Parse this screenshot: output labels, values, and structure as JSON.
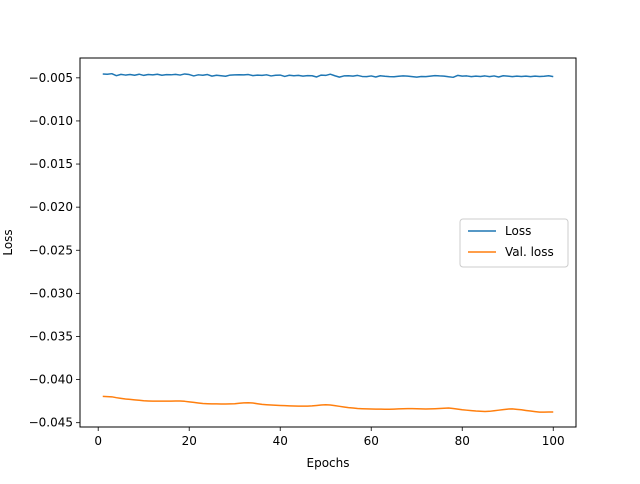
{
  "chart_data": {
    "type": "line",
    "title": "",
    "xlabel": "Epochs",
    "ylabel": "Loss",
    "xlim": [
      -4,
      105
    ],
    "ylim": [
      -0.0455,
      -0.0027
    ],
    "xticks": [
      0,
      20,
      40,
      60,
      80,
      100
    ],
    "xtick_labels": [
      "0",
      "20",
      "40",
      "60",
      "80",
      "100"
    ],
    "yticks": [
      -0.045,
      -0.04,
      -0.035,
      -0.03,
      -0.025,
      -0.02,
      -0.015,
      -0.01,
      -0.005
    ],
    "ytick_labels": [
      "−0.045",
      "−0.040",
      "−0.035",
      "−0.030",
      "−0.025",
      "−0.020",
      "−0.015",
      "−0.010",
      "−0.005"
    ],
    "grid": false,
    "legend_position": "center-right",
    "x": [
      1,
      2,
      3,
      4,
      5,
      6,
      7,
      8,
      9,
      10,
      11,
      12,
      13,
      14,
      15,
      16,
      17,
      18,
      19,
      20,
      21,
      22,
      23,
      24,
      25,
      26,
      27,
      28,
      29,
      30,
      31,
      32,
      33,
      34,
      35,
      36,
      37,
      38,
      39,
      40,
      41,
      42,
      43,
      44,
      45,
      46,
      47,
      48,
      49,
      50,
      51,
      52,
      53,
      54,
      55,
      56,
      57,
      58,
      59,
      60,
      61,
      62,
      63,
      64,
      65,
      66,
      67,
      68,
      69,
      70,
      71,
      72,
      73,
      74,
      75,
      76,
      77,
      78,
      79,
      80,
      81,
      82,
      83,
      84,
      85,
      86,
      87,
      88,
      89,
      90,
      91,
      92,
      93,
      94,
      95,
      96,
      97,
      98,
      99,
      100
    ],
    "series": [
      {
        "name": "Loss",
        "color": "#1f77b4",
        "values": [
          -0.00455,
          -0.00458,
          -0.00452,
          -0.00475,
          -0.0046,
          -0.00468,
          -0.00462,
          -0.0047,
          -0.00458,
          -0.00472,
          -0.00461,
          -0.00466,
          -0.00458,
          -0.0047,
          -0.00463,
          -0.00465,
          -0.0046,
          -0.00468,
          -0.00455,
          -0.00462,
          -0.00478,
          -0.00465,
          -0.0047,
          -0.00462,
          -0.0048,
          -0.0047,
          -0.00476,
          -0.00482,
          -0.00468,
          -0.00466,
          -0.00464,
          -0.00466,
          -0.00462,
          -0.00474,
          -0.00468,
          -0.00472,
          -0.00465,
          -0.00478,
          -0.0047,
          -0.00468,
          -0.00484,
          -0.0047,
          -0.00476,
          -0.00472,
          -0.0048,
          -0.00474,
          -0.00476,
          -0.0049,
          -0.00468,
          -0.00472,
          -0.00458,
          -0.00476,
          -0.00492,
          -0.00478,
          -0.00476,
          -0.0048,
          -0.00472,
          -0.00484,
          -0.00486,
          -0.00478,
          -0.0049,
          -0.00476,
          -0.00482,
          -0.00486,
          -0.00488,
          -0.00482,
          -0.00478,
          -0.0048,
          -0.00486,
          -0.00492,
          -0.00484,
          -0.00486,
          -0.0048,
          -0.00474,
          -0.00478,
          -0.0048,
          -0.00488,
          -0.00494,
          -0.00472,
          -0.0048,
          -0.00478,
          -0.00486,
          -0.0048,
          -0.00484,
          -0.00478,
          -0.00486,
          -0.00478,
          -0.0049,
          -0.00476,
          -0.0048,
          -0.00486,
          -0.0048,
          -0.00484,
          -0.0048,
          -0.00486,
          -0.0048,
          -0.00484,
          -0.00482,
          -0.00476,
          -0.00486
        ]
      },
      {
        "name": "Val. loss",
        "color": "#ff7f0e",
        "values": [
          -0.04195,
          -0.04197,
          -0.042,
          -0.0421,
          -0.04218,
          -0.04225,
          -0.0423,
          -0.04235,
          -0.0424,
          -0.04245,
          -0.04248,
          -0.0425,
          -0.0425,
          -0.0425,
          -0.0425,
          -0.0425,
          -0.04248,
          -0.04248,
          -0.04252,
          -0.04258,
          -0.04265,
          -0.04272,
          -0.04278,
          -0.0428,
          -0.04282,
          -0.04282,
          -0.04283,
          -0.04283,
          -0.04282,
          -0.0428,
          -0.04275,
          -0.0427,
          -0.04268,
          -0.04272,
          -0.0428,
          -0.04288,
          -0.04292,
          -0.04295,
          -0.04298,
          -0.043,
          -0.04302,
          -0.04305,
          -0.04307,
          -0.04308,
          -0.04308,
          -0.04308,
          -0.04305,
          -0.043,
          -0.04295,
          -0.04292,
          -0.04295,
          -0.04302,
          -0.0431,
          -0.04318,
          -0.04325,
          -0.0433,
          -0.04335,
          -0.04338,
          -0.0434,
          -0.04341,
          -0.04342,
          -0.04343,
          -0.04344,
          -0.04344,
          -0.04342,
          -0.0434,
          -0.04338,
          -0.04337,
          -0.04337,
          -0.04338,
          -0.0434,
          -0.04341,
          -0.0434,
          -0.04338,
          -0.04335,
          -0.04332,
          -0.0433,
          -0.04335,
          -0.04342,
          -0.0435,
          -0.04355,
          -0.0436,
          -0.04365,
          -0.04368,
          -0.0437,
          -0.04368,
          -0.04362,
          -0.04355,
          -0.04348,
          -0.04342,
          -0.0434,
          -0.04345,
          -0.0435,
          -0.04358,
          -0.04365,
          -0.04372,
          -0.04378,
          -0.04378,
          -0.04376,
          -0.04376
        ]
      }
    ]
  }
}
